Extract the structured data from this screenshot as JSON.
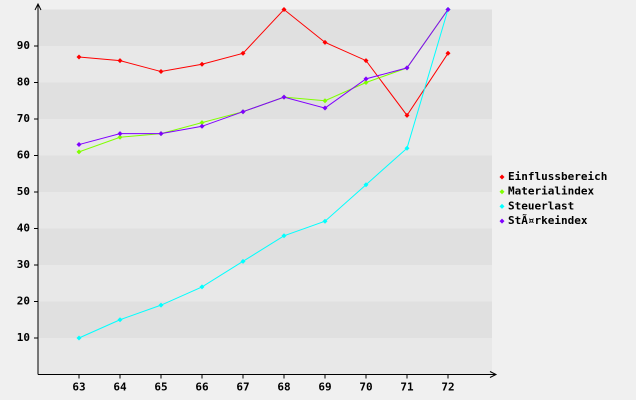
{
  "chart_data": {
    "type": "line",
    "categories": [
      "63",
      "64",
      "65",
      "66",
      "67",
      "68",
      "69",
      "70",
      "71",
      "72"
    ],
    "series": [
      {
        "name": "Einflussbereich",
        "color": "#ff0000",
        "values": [
          87,
          86,
          83,
          85,
          88,
          100,
          91,
          86,
          71,
          88
        ]
      },
      {
        "name": "Materialindex",
        "color": "#80ff00",
        "values": [
          61,
          65,
          66,
          69,
          72,
          76,
          75,
          80,
          84,
          100
        ]
      },
      {
        "name": "Steuerlast",
        "color": "#00ffff",
        "values": [
          10,
          15,
          19,
          24,
          31,
          38,
          42,
          52,
          62,
          100
        ]
      },
      {
        "name": "StÃ¤rkeindex",
        "color": "#8000ff",
        "values": [
          63,
          66,
          66,
          68,
          72,
          76,
          73,
          81,
          84,
          100
        ]
      }
    ],
    "ylim": [
      0,
      100
    ],
    "yticks": [
      10,
      20,
      30,
      40,
      50,
      60,
      70,
      80,
      90
    ],
    "grid": true,
    "legend": "right"
  }
}
